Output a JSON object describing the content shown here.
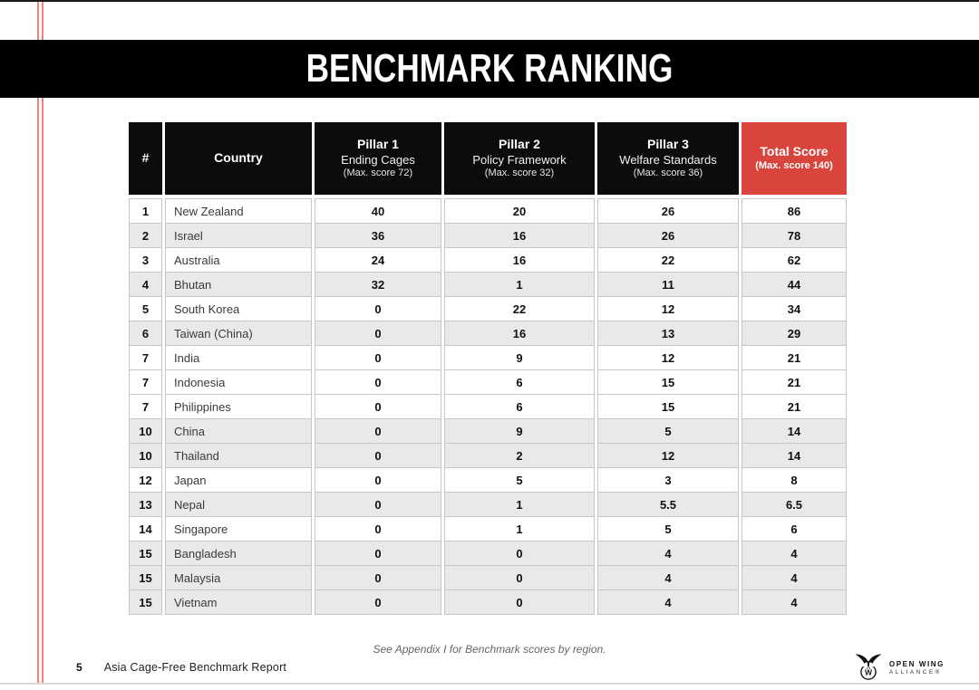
{
  "banner": {
    "title": "BENCHMARK RANKING"
  },
  "table": {
    "columns": [
      {
        "title": "#"
      },
      {
        "title": "Country"
      },
      {
        "title": "Pillar 1",
        "subtitle": "Ending Cages",
        "max": "(Max. score 72)"
      },
      {
        "title": "Pillar 2",
        "subtitle": "Policy Framework",
        "max": "(Max. score 32)"
      },
      {
        "title": "Pillar 3",
        "subtitle": "Welfare Standards",
        "max": "(Max. score 36)"
      },
      {
        "title": "Total Score",
        "max": "(Max. score 140)"
      }
    ],
    "rows": [
      {
        "rank": "1",
        "country": "New Zealand",
        "p1": "40",
        "p2": "20",
        "p3": "26",
        "total": "86"
      },
      {
        "rank": "2",
        "country": "Israel",
        "p1": "36",
        "p2": "16",
        "p3": "26",
        "total": "78"
      },
      {
        "rank": "3",
        "country": "Australia",
        "p1": "24",
        "p2": "16",
        "p3": "22",
        "total": "62"
      },
      {
        "rank": "4",
        "country": "Bhutan",
        "p1": "32",
        "p2": "1",
        "p3": "11",
        "total": "44"
      },
      {
        "rank": "5",
        "country": "South Korea",
        "p1": "0",
        "p2": "22",
        "p3": "12",
        "total": "34"
      },
      {
        "rank": "6",
        "country": "Taiwan (China)",
        "p1": "0",
        "p2": "16",
        "p3": "13",
        "total": "29"
      },
      {
        "rank": "7",
        "country": "India",
        "p1": "0",
        "p2": "9",
        "p3": "12",
        "total": "21"
      },
      {
        "rank": "7",
        "country": "Indonesia",
        "p1": "0",
        "p2": "6",
        "p3": "15",
        "total": "21"
      },
      {
        "rank": "7",
        "country": "Philippines",
        "p1": "0",
        "p2": "6",
        "p3": "15",
        "total": "21"
      },
      {
        "rank": "10",
        "country": "China",
        "p1": "0",
        "p2": "9",
        "p3": "5",
        "total": "14"
      },
      {
        "rank": "10",
        "country": "Thailand",
        "p1": "0",
        "p2": "2",
        "p3": "12",
        "total": "14"
      },
      {
        "rank": "12",
        "country": "Japan",
        "p1": "0",
        "p2": "5",
        "p3": "3",
        "total": "8"
      },
      {
        "rank": "13",
        "country": "Nepal",
        "p1": "0",
        "p2": "1",
        "p3": "5.5",
        "total": "6.5"
      },
      {
        "rank": "14",
        "country": "Singapore",
        "p1": "0",
        "p2": "1",
        "p3": "5",
        "total": "6"
      },
      {
        "rank": "15",
        "country": "Bangladesh",
        "p1": "0",
        "p2": "0",
        "p3": "4",
        "total": "4"
      },
      {
        "rank": "15",
        "country": "Malaysia",
        "p1": "0",
        "p2": "0",
        "p3": "4",
        "total": "4"
      },
      {
        "rank": "15",
        "country": "Vietnam",
        "p1": "0",
        "p2": "0",
        "p3": "4",
        "total": "4"
      }
    ]
  },
  "footnote": "See Appendix I for Benchmark scores by region.",
  "footer": {
    "page_number": "5",
    "report_title": "Asia Cage-Free Benchmark Report"
  },
  "logo": {
    "line1": "OPEN WING",
    "line2": "ALLIANCE®"
  },
  "colors": {
    "accent_red": "#d9453c",
    "stripe_red": "#f2827b",
    "row_alt": "#e9e9e9",
    "header_bg": "#0c0c0c",
    "banner_bg": "#000000"
  }
}
